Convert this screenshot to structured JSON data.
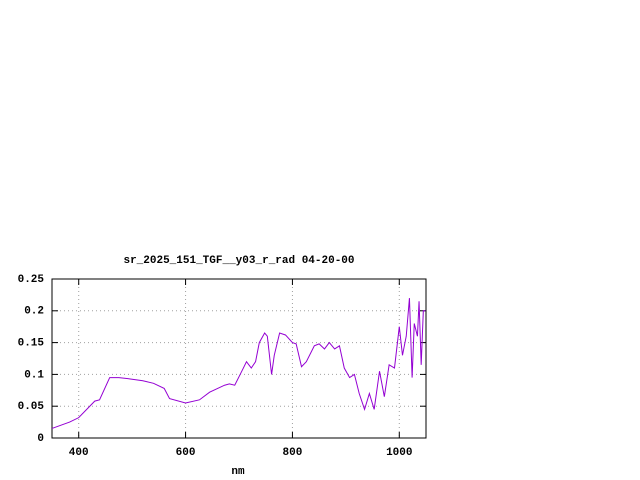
{
  "chart_data": {
    "type": "line",
    "title": "sr_2025_151_TGF__y03_r_rad 04-20-00",
    "x_label": "nm",
    "xlim": [
      350,
      1050
    ],
    "ylim": [
      0,
      0.25
    ],
    "xticks": [
      400,
      600,
      800,
      1000
    ],
    "yticks": [
      0,
      0.05,
      0.1,
      0.15,
      0.2,
      0.25
    ],
    "grid": true,
    "x": [
      350,
      383,
      400,
      430,
      439,
      458,
      475,
      495,
      520,
      540,
      560,
      570,
      600,
      626,
      645,
      673,
      682,
      692,
      707,
      714,
      723,
      731,
      738,
      748,
      753,
      761,
      766,
      776,
      787,
      800,
      807,
      817,
      826,
      841,
      850,
      860,
      869,
      879,
      888,
      897,
      907,
      916,
      925,
      935,
      944,
      953,
      963,
      972,
      981,
      991,
      1000,
      1006,
      1013,
      1019,
      1024,
      1028,
      1034,
      1037,
      1041,
      1045,
      1049
    ],
    "series": [
      {
        "name": "sr_2025_151_TGF__y03_r_rad",
        "color": "#9400d3",
        "values": [
          0.015,
          0.025,
          0.032,
          0.058,
          0.06,
          0.095,
          0.095,
          0.093,
          0.09,
          0.086,
          0.078,
          0.062,
          0.055,
          0.06,
          0.072,
          0.083,
          0.085,
          0.083,
          0.108,
          0.12,
          0.11,
          0.12,
          0.15,
          0.165,
          0.16,
          0.1,
          0.13,
          0.165,
          0.162,
          0.15,
          0.148,
          0.112,
          0.12,
          0.145,
          0.148,
          0.14,
          0.15,
          0.14,
          0.145,
          0.11,
          0.095,
          0.1,
          0.07,
          0.045,
          0.07,
          0.045,
          0.105,
          0.065,
          0.115,
          0.11,
          0.175,
          0.13,
          0.16,
          0.22,
          0.095,
          0.18,
          0.16,
          0.215,
          0.115,
          0.2,
          0.2
        ]
      }
    ]
  }
}
